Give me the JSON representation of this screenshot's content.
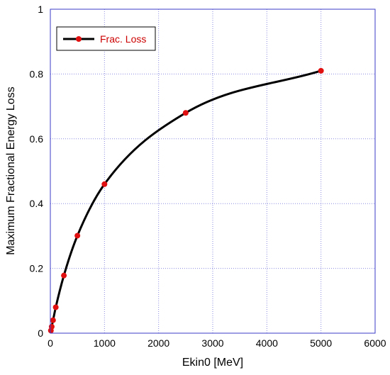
{
  "chart_data": {
    "type": "line",
    "title": "",
    "xlabel": "Ekin0 [MeV]",
    "ylabel": "Maximum Fractional Energy Loss",
    "xlim": [
      0,
      6000
    ],
    "ylim": [
      0,
      1
    ],
    "x_ticks": [
      "0",
      "1000",
      "2000",
      "3000",
      "4000",
      "5000",
      "6000"
    ],
    "y_ticks": [
      "0",
      "0.2",
      "0.4",
      "0.6",
      "0.8",
      "1"
    ],
    "grid": true,
    "legend_position": "top-left",
    "series": [
      {
        "name": "Frac. Loss",
        "line_color": "#000000",
        "marker_color": "#e01010",
        "x": [
          10,
          25,
          50,
          100,
          250,
          500,
          1000,
          2500,
          5000
        ],
        "y": [
          0.008,
          0.02,
          0.04,
          0.08,
          0.178,
          0.301,
          0.46,
          0.68,
          0.81
        ]
      }
    ]
  },
  "colors": {
    "frame": "#3b3bc8",
    "grid": "#8a8ae0",
    "legend_text": "#cc0000"
  }
}
